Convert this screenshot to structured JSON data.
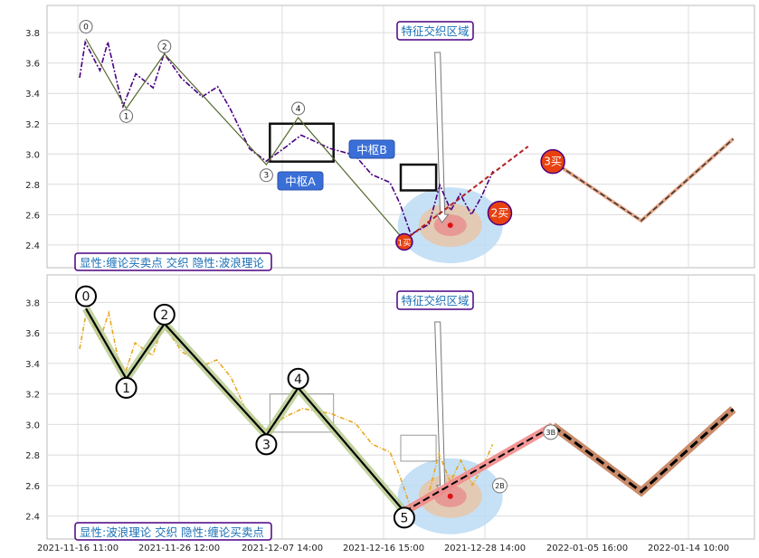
{
  "chart_data": [
    {
      "type": "line",
      "panel": "top",
      "ylim": [
        2.25,
        3.98
      ],
      "yticks": [
        "2.4",
        "2.6",
        "2.8",
        "3.0",
        "3.2",
        "3.4",
        "3.6",
        "3.8"
      ],
      "ytick_values": [
        2.4,
        2.6,
        2.8,
        3.0,
        3.2,
        3.4,
        3.6,
        3.8
      ],
      "grid": true,
      "legend_text": "显性:缠论买卖点 交织 隐性:波浪理论",
      "annotations": {
        "zone_label": "特征交织区域",
        "pivot_a": "中枢A",
        "pivot_b": "中枢B",
        "buy1": "1买",
        "buy2": "2买",
        "buy3": "3买"
      },
      "wave_labels": [
        "0",
        "1",
        "2",
        "3",
        "4"
      ],
      "price_series_color": "#4b0082"
    },
    {
      "type": "line",
      "panel": "bottom",
      "ylim": [
        2.25,
        3.98
      ],
      "yticks": [
        "2.4",
        "2.6",
        "2.8",
        "3.0",
        "3.2",
        "3.4",
        "3.6",
        "3.8"
      ],
      "ytick_values": [
        2.4,
        2.6,
        2.8,
        3.0,
        3.2,
        3.4,
        3.6,
        3.8
      ],
      "grid": true,
      "legend_text": "显性:波浪理论 交织 隐性:缠论买卖点",
      "annotations": {
        "zone_label": "特征交织区域",
        "small_2b": "2B",
        "small_3b": "3B"
      },
      "wave_labels": [
        "0",
        "1",
        "2",
        "3",
        "4",
        "5"
      ],
      "price_series_color": "#e6a823"
    }
  ],
  "x_axis": {
    "tick_labels": [
      "2021-11-16 11:00",
      "2021-11-26 12:00",
      "2021-12-07 14:00",
      "2021-12-16 15:00",
      "2021-12-28 14:00",
      "2022-01-05 16:00",
      "2022-01-14 10:00"
    ]
  }
}
